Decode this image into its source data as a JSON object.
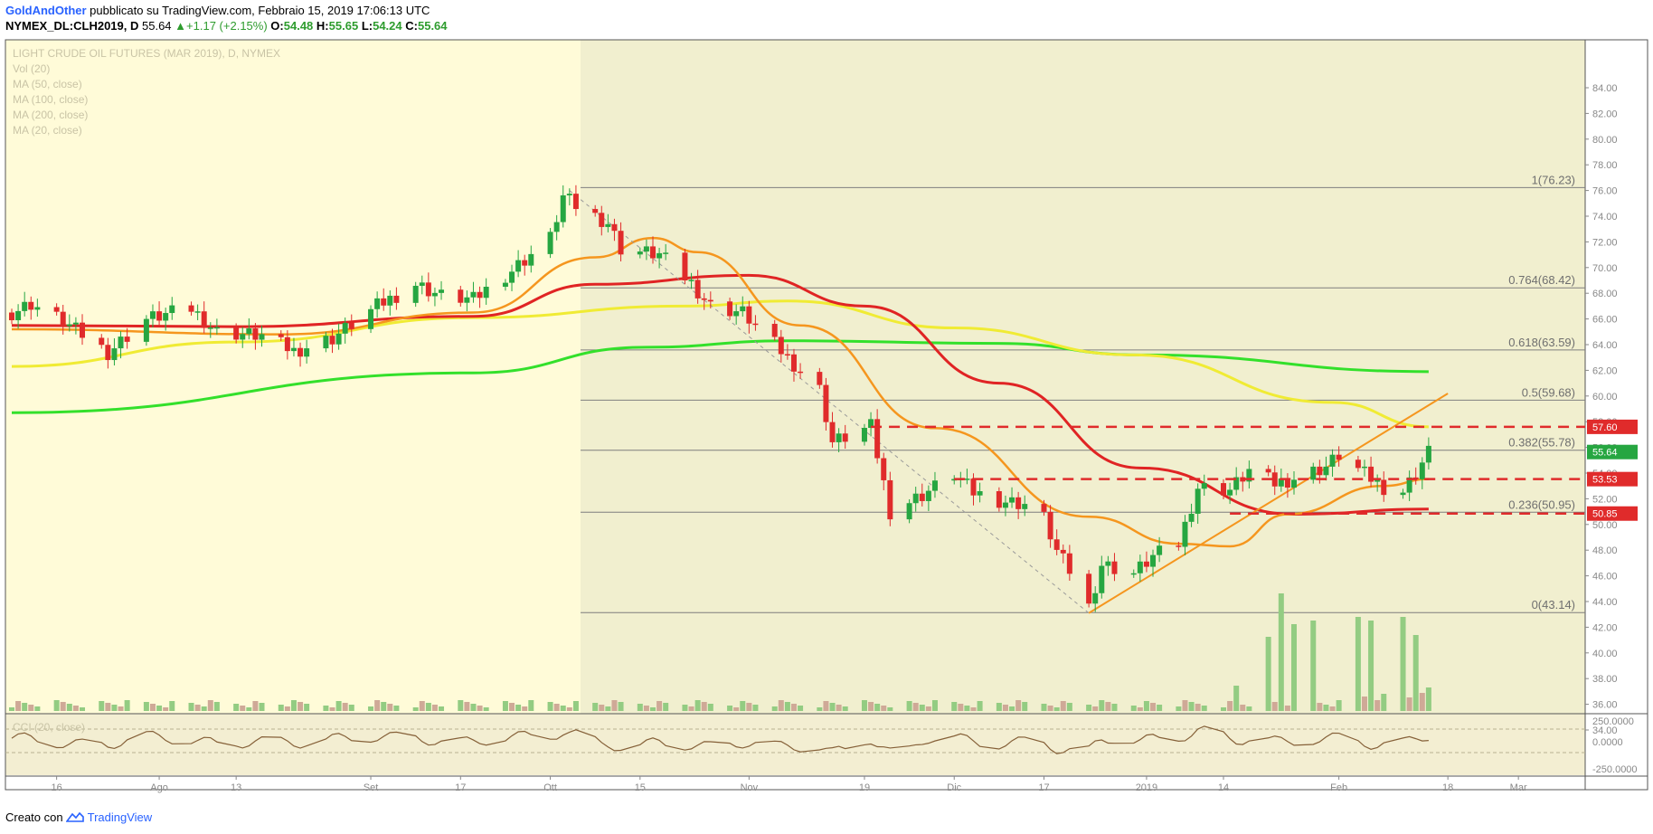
{
  "header": {
    "author": "GoldAndOther",
    "published": "pubblicato su TradingView.com, Febbraio 15, 2019 17:06:13 UTC",
    "symbol": "NYMEX_DL:CLH2019, D",
    "price": "55.64",
    "change_arrow": "▲",
    "change": "+1.17 (+2.15%)",
    "o_label": "O:",
    "o_value": "54.48",
    "h_label": "H:",
    "h_value": "55.65",
    "l_label": "L:",
    "l_value": "54.24",
    "c_label": "C:",
    "c_value": "55.64"
  },
  "legend": {
    "title": "LIGHT CRUDE OIL FUTURES (MAR 2019), D, NYMEX",
    "vol": "Vol (20)",
    "ma50": "MA (50, close)",
    "ma100": "MA (100, close)",
    "ma200": "MA (200, close)",
    "ma20": "MA (20, close)",
    "cci": "CCI (20, close)"
  },
  "footer": {
    "created": "Creato con",
    "brand": "TradingView"
  },
  "colors": {
    "up": "#26a641",
    "down": "#e02b2b",
    "ma20": "#f5961e",
    "ma50": "#e02424",
    "ma100": "#f0eb34",
    "ma200": "#33e02b",
    "bg_left": "#fffbd8",
    "bg_fib": "#f1efcf",
    "vol_up": "#93cc82",
    "vol_down": "#cfa997",
    "cci": "#856038"
  },
  "chart_data": {
    "type": "candlestick",
    "title": "LIGHT CRUDE OIL FUTURES (MAR 2019), D, NYMEX",
    "y_range": [
      32.5,
      85
    ],
    "y_ticks": [
      "84.00",
      "82.00",
      "80.00",
      "78.00",
      "76.00",
      "74.00",
      "72.00",
      "70.00",
      "68.00",
      "66.00",
      "64.00",
      "62.00",
      "60.00",
      "58.00",
      "56.00",
      "54.00",
      "52.00",
      "50.00",
      "48.00",
      "46.00",
      "44.00",
      "42.00",
      "40.00",
      "38.00",
      "36.00",
      "34.00"
    ],
    "x_ticks": [
      "16",
      "Ago",
      "13",
      "Set",
      "17",
      "Ott",
      "15",
      "Nov",
      "19",
      "Dic",
      "17",
      "2019",
      "14",
      "Feb",
      "18",
      "Mar"
    ],
    "fib_levels": [
      {
        "label": "1(76.23)",
        "value": 76.23
      },
      {
        "label": "0.764(68.42)",
        "value": 68.42
      },
      {
        "label": "0.618(63.59)",
        "value": 63.59
      },
      {
        "label": "0.5(59.68)",
        "value": 59.68
      },
      {
        "label": "0.382(55.78)",
        "value": 55.78
      },
      {
        "label": "0.236(50.95)",
        "value": 50.95
      },
      {
        "label": "0(43.14)",
        "value": 43.14
      }
    ],
    "price_badges": [
      {
        "label": "57.60",
        "value": 57.6,
        "color": "#e02b2b"
      },
      {
        "label": "55.64",
        "value": 55.64,
        "color": "#26a641"
      },
      {
        "label": "53.53",
        "value": 53.53,
        "color": "#e02b2b"
      },
      {
        "label": "50.85",
        "value": 50.85,
        "color": "#e02b2b"
      }
    ],
    "dashed_levels": [
      57.6,
      53.53,
      50.85
    ],
    "cci_ticks": [
      "250.0000",
      "0.0000",
      "-250.0000"
    ],
    "anchors": [
      [
        "2018-07-09",
        66.5
      ],
      [
        "2018-07-12",
        67.2
      ],
      [
        "2018-07-17",
        65.8
      ],
      [
        "2018-07-24",
        63.4
      ],
      [
        "2018-07-30",
        66.0
      ],
      [
        "2018-08-06",
        66.8
      ],
      [
        "2018-08-10",
        65.0
      ],
      [
        "2018-08-17",
        64.7
      ],
      [
        "2018-08-22",
        63.5
      ],
      [
        "2018-08-28",
        64.5
      ],
      [
        "2018-09-04",
        67.0
      ],
      [
        "2018-09-10",
        68.7
      ],
      [
        "2018-09-14",
        67.8
      ],
      [
        "2018-09-19",
        67.5
      ],
      [
        "2018-09-25",
        69.8
      ],
      [
        "2018-10-01",
        72.3
      ],
      [
        "2018-10-03",
        75.5
      ],
      [
        "2018-10-05",
        74.8
      ],
      [
        "2018-10-10",
        73.5
      ],
      [
        "2018-10-12",
        71.5
      ],
      [
        "2018-10-18",
        71.0
      ],
      [
        "2018-10-23",
        68.8
      ],
      [
        "2018-10-26",
        67.0
      ],
      [
        "2018-10-31",
        66.5
      ],
      [
        "2018-11-05",
        64.0
      ],
      [
        "2018-11-12",
        60.5
      ],
      [
        "2018-11-14",
        56.4
      ],
      [
        "2018-11-20",
        57.6
      ],
      [
        "2018-11-23",
        51.0
      ],
      [
        "2018-11-28",
        52.3
      ],
      [
        "2018-12-03",
        53.9
      ],
      [
        "2018-12-06",
        52.5
      ],
      [
        "2018-12-10",
        51.9
      ],
      [
        "2018-12-14",
        51.6
      ],
      [
        "2018-12-17",
        50.5
      ],
      [
        "2018-12-19",
        47.9
      ],
      [
        "2018-12-21",
        46.4
      ],
      [
        "2018-12-24",
        43.6
      ],
      [
        "2018-12-26",
        46.9
      ],
      [
        "2018-12-31",
        46.2
      ],
      [
        "2019-01-03",
        47.5
      ],
      [
        "2019-01-07",
        48.5
      ],
      [
        "2019-01-10",
        52.9
      ],
      [
        "2019-01-15",
        52.7
      ],
      [
        "2019-01-18",
        54.2
      ],
      [
        "2019-01-22",
        53.2
      ],
      [
        "2019-01-25",
        53.6
      ],
      [
        "2019-01-30",
        54.5
      ],
      [
        "2019-02-01",
        55.4
      ],
      [
        "2019-02-05",
        53.9
      ],
      [
        "2019-02-08",
        52.9
      ],
      [
        "2019-02-11",
        52.6
      ],
      [
        "2019-02-13",
        54.0
      ],
      [
        "2019-02-15",
        55.64
      ]
    ],
    "ma20_anchors": [
      [
        "2018-07-09",
        65.2
      ],
      [
        "2018-08-20",
        64.8
      ],
      [
        "2018-09-19",
        66.5
      ],
      [
        "2018-10-08",
        70.8
      ],
      [
        "2018-10-17",
        72.3
      ],
      [
        "2018-10-24",
        71.2
      ],
      [
        "2018-11-09",
        65.5
      ],
      [
        "2018-11-30",
        57.5
      ],
      [
        "2018-12-24",
        50.6
      ],
      [
        "2019-01-07",
        48.5
      ],
      [
        "2019-01-15",
        48.3
      ],
      [
        "2019-01-24",
        50.8
      ],
      [
        "2019-02-08",
        53.0
      ],
      [
        "2019-02-15",
        53.53
      ]
    ],
    "ma50_anchors": [
      [
        "2018-07-09",
        65.5
      ],
      [
        "2018-08-13",
        65.4
      ],
      [
        "2018-09-19",
        66.2
      ],
      [
        "2018-10-08",
        68.7
      ],
      [
        "2018-11-01",
        69.4
      ],
      [
        "2018-11-19",
        67.0
      ],
      [
        "2018-12-10",
        61.0
      ],
      [
        "2019-01-01",
        54.4
      ],
      [
        "2019-01-25",
        50.8
      ],
      [
        "2019-02-15",
        51.2
      ]
    ],
    "ma100_anchors": [
      [
        "2018-07-09",
        62.3
      ],
      [
        "2018-08-13",
        64.2
      ],
      [
        "2018-09-19",
        66.1
      ],
      [
        "2018-10-22",
        67.0
      ],
      [
        "2018-11-07",
        67.4
      ],
      [
        "2018-12-03",
        65.3
      ],
      [
        "2018-12-31",
        63.2
      ],
      [
        "2019-01-31",
        59.5
      ],
      [
        "2019-02-15",
        57.6
      ]
    ],
    "ma200_anchors": [
      [
        "2018-07-09",
        58.7
      ],
      [
        "2018-09-19",
        61.8
      ],
      [
        "2018-10-16",
        63.8
      ],
      [
        "2018-11-07",
        64.3
      ],
      [
        "2018-12-10",
        64.1
      ],
      [
        "2019-01-01",
        63.2
      ],
      [
        "2019-02-15",
        61.9
      ]
    ],
    "trendline": {
      "from": [
        "2018-12-24",
        43.1
      ],
      "to": [
        "2019-02-18",
        60.2
      ]
    },
    "diag_line": {
      "from": [
        "2018-10-04",
        76.0
      ],
      "to": [
        "2018-12-24",
        43.1
      ]
    },
    "volume_spikes": [
      [
        "2019-01-16",
        28
      ],
      [
        "2019-01-21",
        82
      ],
      [
        "2019-01-23",
        130
      ],
      [
        "2019-01-25",
        96
      ],
      [
        "2019-01-28",
        100
      ],
      [
        "2019-02-04",
        104
      ],
      [
        "2019-02-06",
        100
      ],
      [
        "2019-02-11",
        104
      ],
      [
        "2019-02-13",
        84
      ],
      [
        "2019-02-15",
        26
      ]
    ]
  }
}
